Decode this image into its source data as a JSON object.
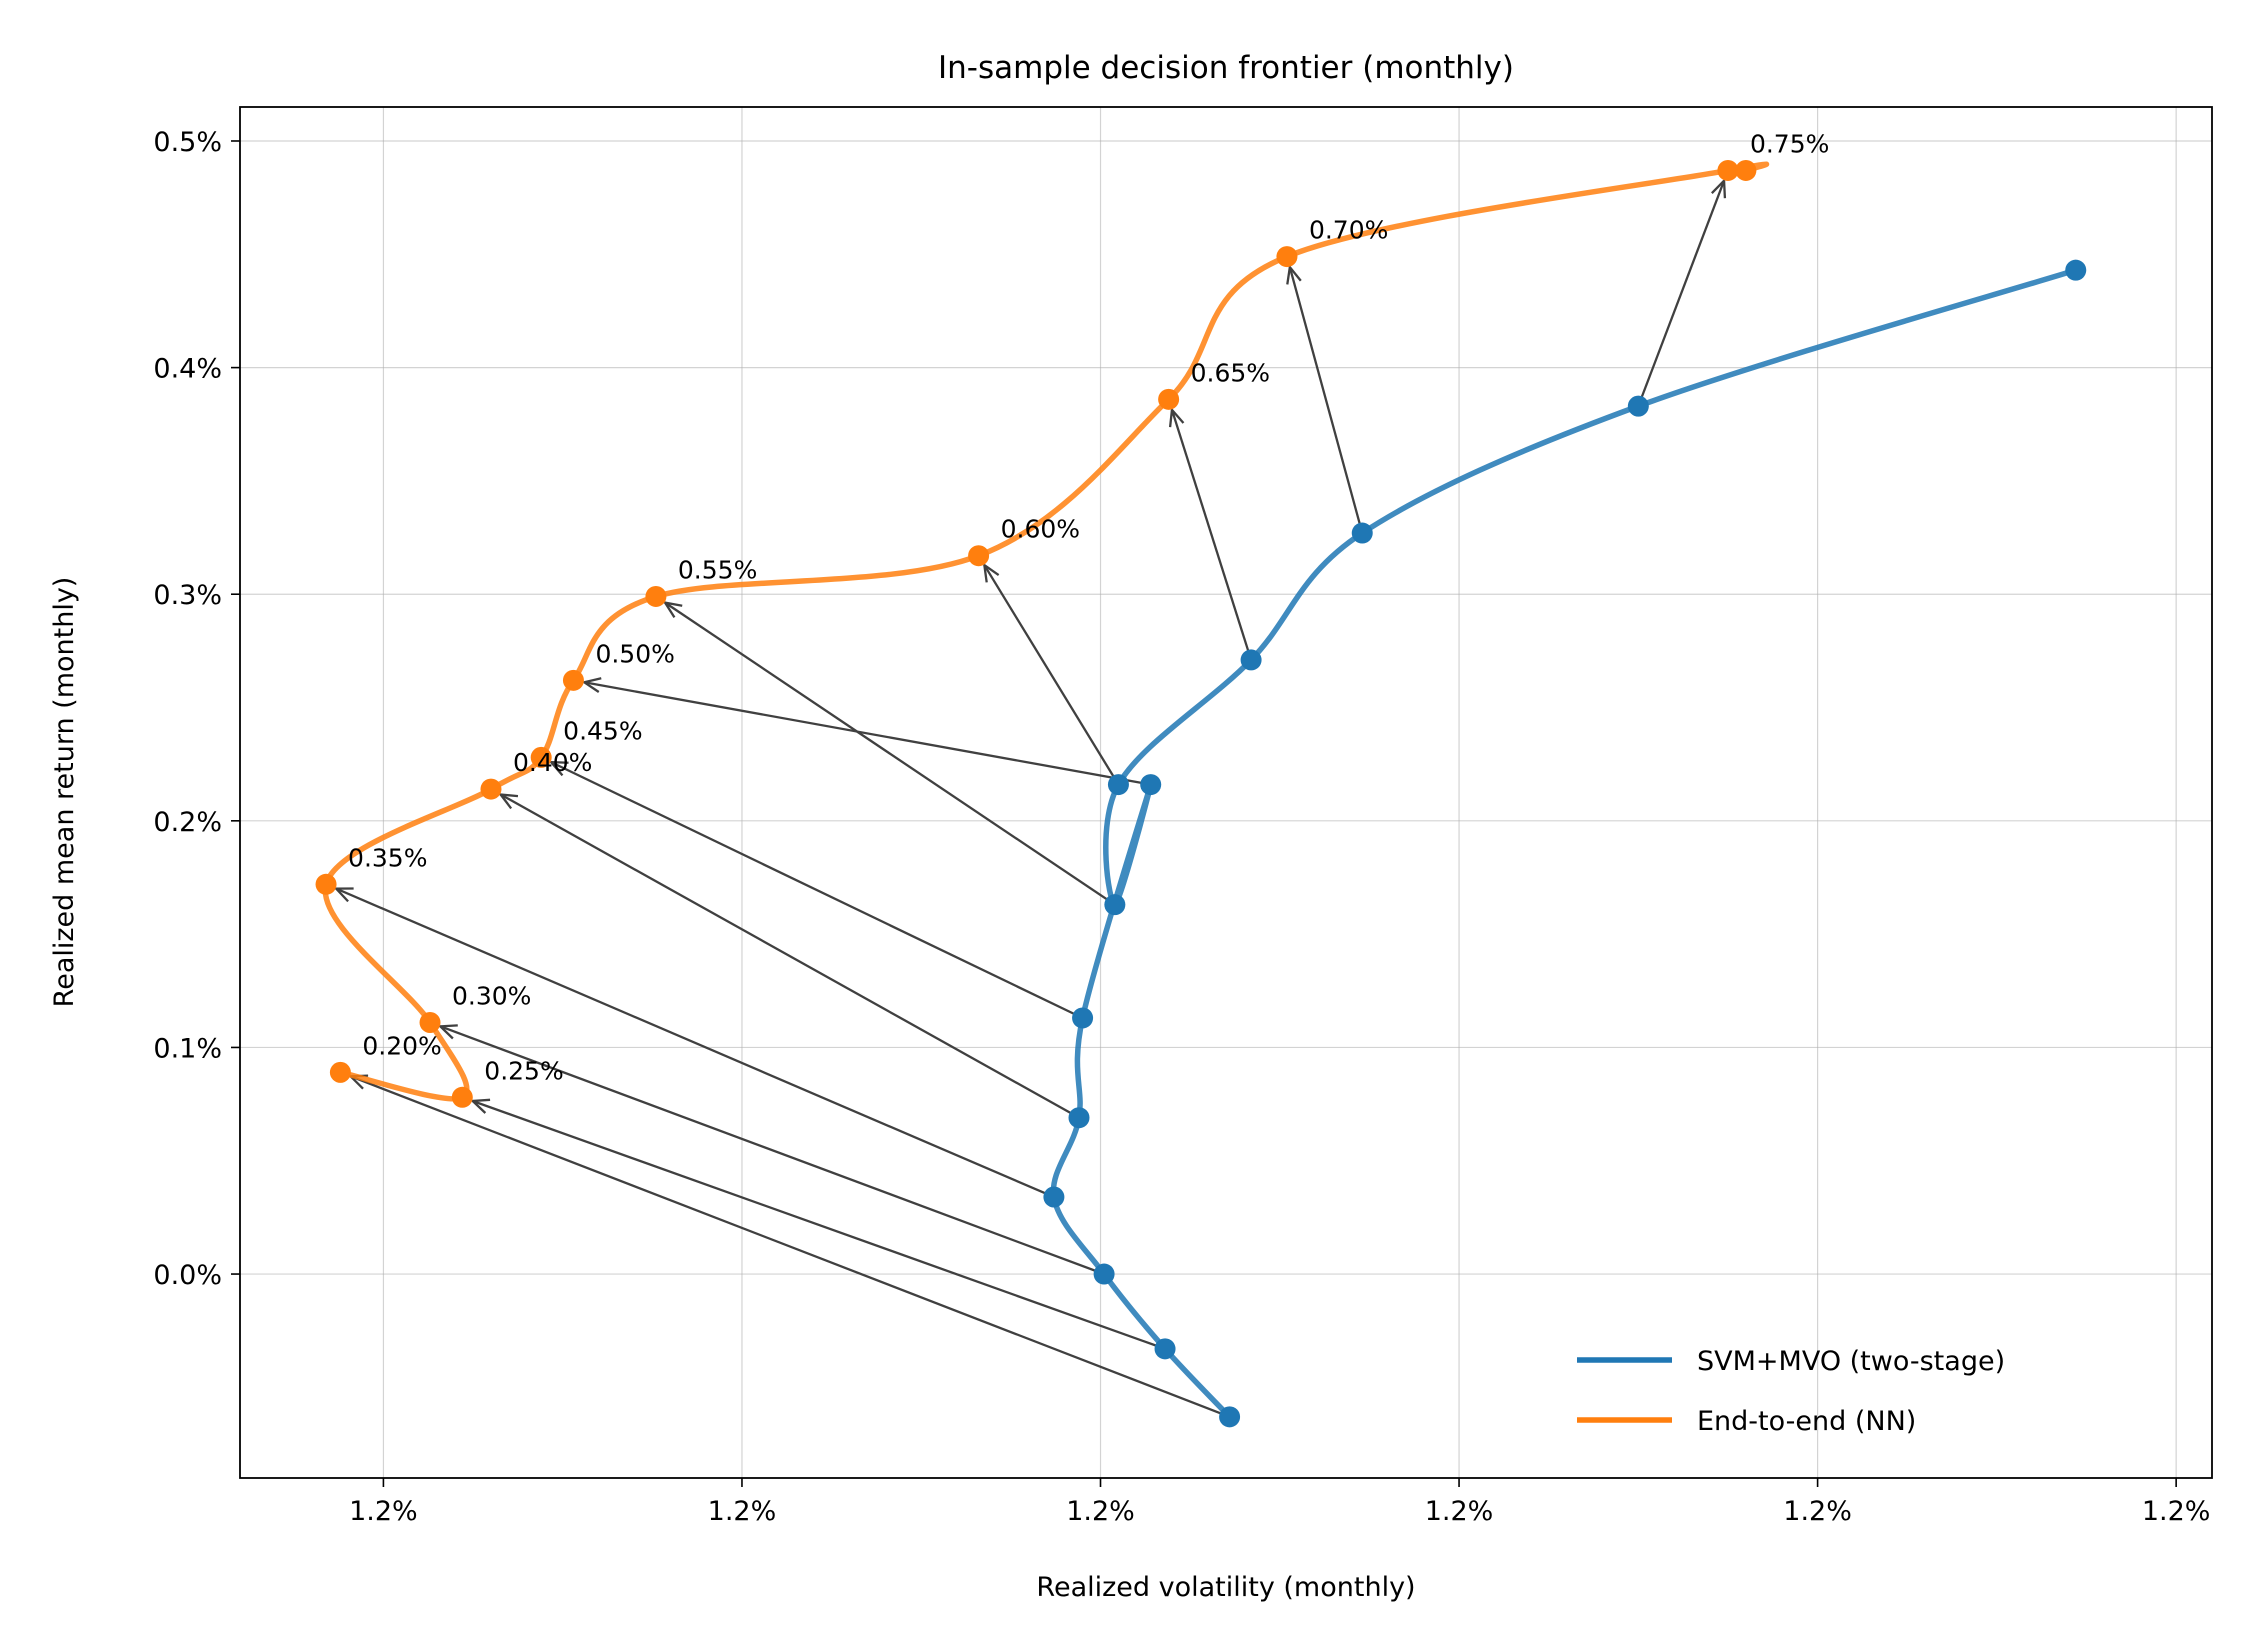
{
  "chart_data": {
    "type": "line",
    "title": "In-sample decision frontier (monthly)",
    "xlabel": "Realized volatility (monthly)",
    "ylabel": "Realized mean return (monthly)",
    "x_tick_labels": [
      "1.2%",
      "1.2%",
      "1.2%",
      "1.2%",
      "1.2%",
      "1.2%"
    ],
    "y_ticks": [
      0.0,
      0.1,
      0.2,
      0.3,
      0.4,
      0.5
    ],
    "y_tick_labels": [
      "0.0%",
      "0.1%",
      "0.2%",
      "0.3%",
      "0.4%",
      "0.5%"
    ],
    "xlim": [
      0,
      27.5
    ],
    "ylim": [
      -0.09,
      0.515
    ],
    "grid": true,
    "legend_position": "lower-right",
    "colors": {
      "svm": "#1f77b4",
      "e2e": "#ff7f0e",
      "arrow": "#404040"
    },
    "annotation_labels": [
      "0.20%",
      "0.25%",
      "0.30%",
      "0.35%",
      "0.40%",
      "0.45%",
      "0.50%",
      "0.55%",
      "0.60%",
      "0.65%",
      "0.70%",
      "0.75%"
    ],
    "series": [
      {
        "name": "SVM+MVO (two-stage)",
        "x": [
          13.8,
          12.9,
          12.05,
          11.35,
          11.7,
          11.75,
          12.7,
          12.2,
          12.25,
          14.1,
          15.65,
          19.5,
          25.6
        ],
        "y": [
          -0.063,
          -0.033,
          0.0,
          0.034,
          0.069,
          0.113,
          0.216,
          0.163,
          0.216,
          0.271,
          0.327,
          0.383,
          0.443
        ]
      },
      {
        "name": "End-to-end (NN)",
        "x": [
          1.4,
          3.1,
          2.65,
          1.2,
          3.5,
          4.2,
          4.65,
          5.8,
          10.3,
          12.95,
          14.6,
          20.75,
          21.0
        ],
        "y": [
          0.089,
          0.078,
          0.111,
          0.172,
          0.214,
          0.228,
          0.262,
          0.299,
          0.317,
          0.386,
          0.449,
          0.487,
          0.487
        ]
      }
    ]
  }
}
